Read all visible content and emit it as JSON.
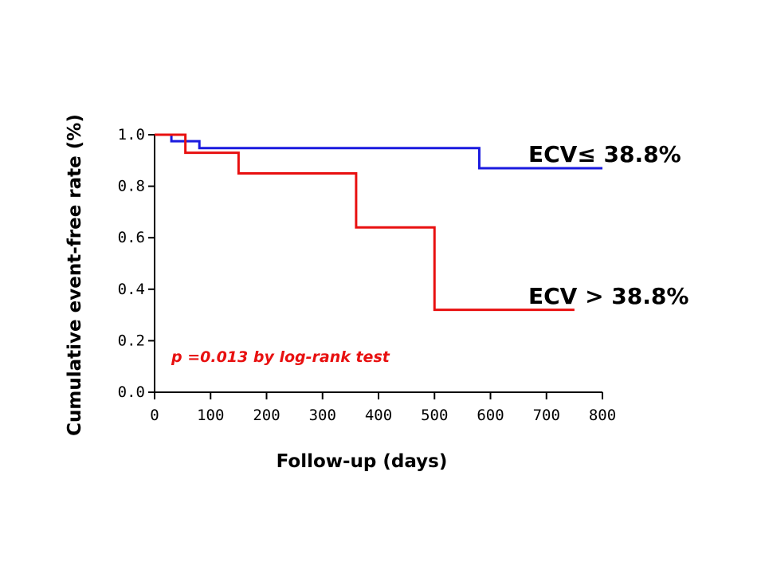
{
  "chart_data": {
    "type": "line",
    "step": true,
    "title": "",
    "xlabel": "Follow-up (days)",
    "ylabel": "Cumulative event-free rate (%)",
    "xlim": [
      0,
      800
    ],
    "ylim": [
      0,
      1.0
    ],
    "xticks": [
      0,
      100,
      200,
      300,
      400,
      500,
      600,
      700,
      800
    ],
    "yticks": [
      0.0,
      0.2,
      0.4,
      0.6,
      0.8,
      1.0
    ],
    "xtick_labels": [
      "0",
      "100",
      "200",
      "300",
      "400",
      "500",
      "600",
      "700",
      "800"
    ],
    "ytick_labels": [
      "0.0",
      "0.2",
      "0.4",
      "0.6",
      "0.8",
      "1.0"
    ],
    "grid": false,
    "series": [
      {
        "name": "ECV≤ 38.8%",
        "label": "ECV≤ 38.8%",
        "color": "#1a1adf",
        "x": [
          0,
          30,
          80,
          580,
          800
        ],
        "y": [
          1.0,
          0.975,
          0.948,
          0.87,
          0.87
        ]
      },
      {
        "name": "ECV > 38.8%",
        "label": "ECV > 38.8%",
        "color": "#e81010",
        "x": [
          0,
          55,
          150,
          360,
          500,
          750
        ],
        "y": [
          1.0,
          0.93,
          0.85,
          0.64,
          0.32,
          0.32
        ]
      }
    ],
    "annotation": {
      "text": "p =0.013 by log-rank test",
      "color": "#e81010"
    }
  }
}
